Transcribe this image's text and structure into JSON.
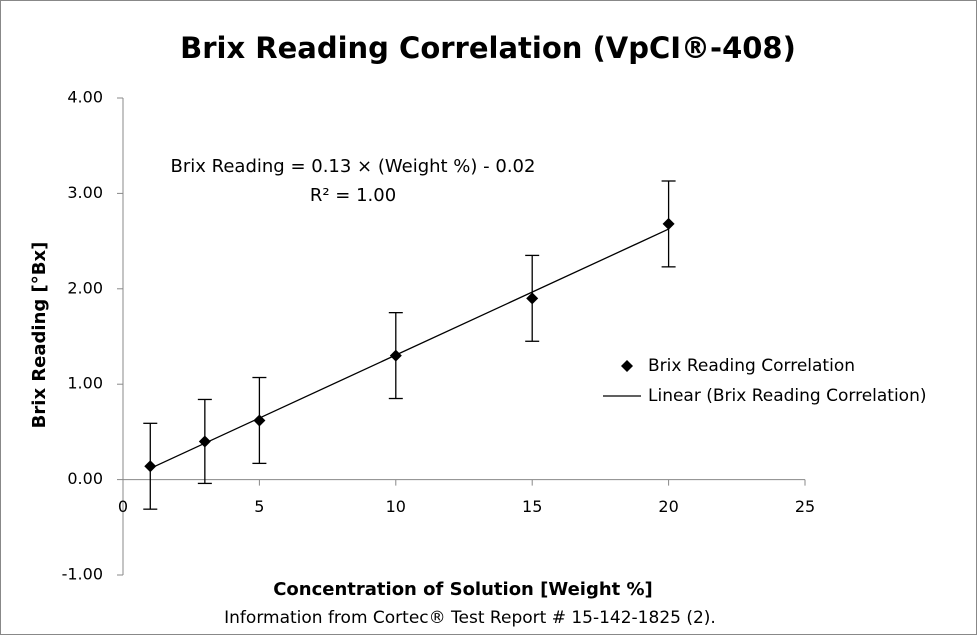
{
  "chart_data": {
    "type": "scatter",
    "title": "Brix Reading Correlation (VpCI®-408)",
    "x_label": "Concentration of Solution [Weight %]",
    "y_label": "Brix Reading [°Bx]",
    "note": "Information from Cortec® Test Report # 15-142-1825 (2).",
    "x": [
      1,
      3,
      5,
      10,
      15,
      20
    ],
    "series": [
      {
        "name": "Brix Reading Correlation",
        "color": "#000000",
        "values": [
          0.14,
          0.4,
          0.62,
          1.3,
          1.9,
          2.68
        ],
        "errors": [
          0.45,
          0.44,
          0.45,
          0.45,
          0.45,
          0.45
        ]
      }
    ],
    "trendline": {
      "name": "Linear (Brix Reading Correlation)",
      "color": "#000000",
      "equation": "Brix Reading = 0.13 × (Weight %) - 0.02",
      "r_squared": "R² = 1.00"
    },
    "xlim": [
      0,
      25
    ],
    "xticks": [
      0,
      5,
      10,
      15,
      20,
      25
    ],
    "ylim": [
      -1,
      4
    ],
    "yticks": [
      {
        "value": -1,
        "label": "-1.00"
      },
      {
        "value": 0,
        "label": "0.00"
      },
      {
        "value": 1,
        "label": "1.00"
      },
      {
        "value": 2,
        "label": "2.00"
      },
      {
        "value": 3,
        "label": "3.00"
      },
      {
        "value": 4,
        "label": "4.00"
      }
    ],
    "grid": false,
    "legend": "right"
  }
}
